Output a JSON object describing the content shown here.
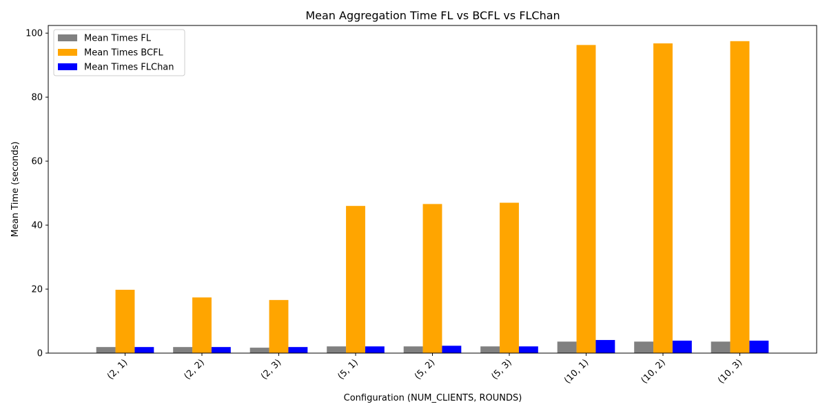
{
  "chart_data": {
    "type": "bar",
    "title": "Mean Aggregation Time FL vs BCFL vs FLChan",
    "xlabel": "Configuration (NUM_CLIENTS, ROUNDS)",
    "ylabel": "Mean Time (seconds)",
    "categories": [
      "(2, 1)",
      "(2, 2)",
      "(2, 3)",
      "(5, 1)",
      "(5, 2)",
      "(5, 3)",
      "(10, 1)",
      "(10, 2)",
      "(10, 3)"
    ],
    "series": [
      {
        "name": "Mean Times FL",
        "color": "#808080",
        "values": [
          1.9,
          1.9,
          1.7,
          2.1,
          2.1,
          2.1,
          3.6,
          3.6,
          3.6
        ]
      },
      {
        "name": "Mean Times BCFL",
        "color": "#FFA500",
        "values": [
          19.8,
          17.4,
          16.6,
          46.0,
          46.6,
          47.0,
          96.3,
          96.8,
          97.5
        ]
      },
      {
        "name": "Mean Times FLChan",
        "color": "#0000FF",
        "values": [
          1.9,
          1.9,
          1.9,
          2.1,
          2.3,
          2.1,
          4.1,
          3.9,
          3.9
        ]
      }
    ],
    "ylim": [
      0,
      102.4
    ],
    "yticks": [
      0,
      20,
      40,
      60,
      80,
      100
    ],
    "xtick_rotation": 45,
    "legend_position": "upper left",
    "grid": false
  }
}
